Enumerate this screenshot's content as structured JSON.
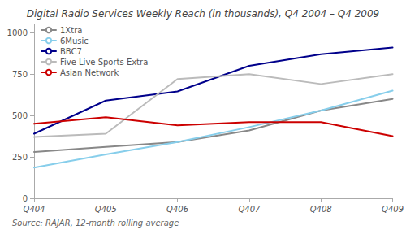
{
  "chart_data": {
    "type": "line",
    "title": "Digital Radio Services Weekly Reach (in thousands), Q4 2004 – Q4 2009",
    "annotations": [
      "Source: RAJAR, 12-month rolling average"
    ],
    "categories": [
      "Q404",
      "Q405",
      "Q406",
      "Q407",
      "Q408",
      "Q409"
    ],
    "series": [
      {
        "name": "1Xtra",
        "color": "#888888",
        "values": [
          280,
          310,
          340,
          410,
          530,
          600
        ]
      },
      {
        "name": "6Music",
        "color": "#87ceeb",
        "values": [
          185,
          265,
          340,
          430,
          530,
          650
        ]
      },
      {
        "name": "BBC7",
        "color": "#00008b",
        "values": [
          390,
          590,
          645,
          800,
          870,
          910
        ]
      },
      {
        "name": "Five Live Sports Extra",
        "color": "#bbbbbb",
        "values": [
          370,
          390,
          720,
          750,
          690,
          750
        ]
      },
      {
        "name": "Asian Network",
        "color": "#cc0000",
        "values": [
          450,
          490,
          440,
          460,
          460,
          375
        ]
      }
    ],
    "ylim": [
      0,
      1050
    ],
    "yticks": [
      0,
      250,
      500,
      750,
      1000
    ],
    "grid": false,
    "legend": "upper left"
  }
}
